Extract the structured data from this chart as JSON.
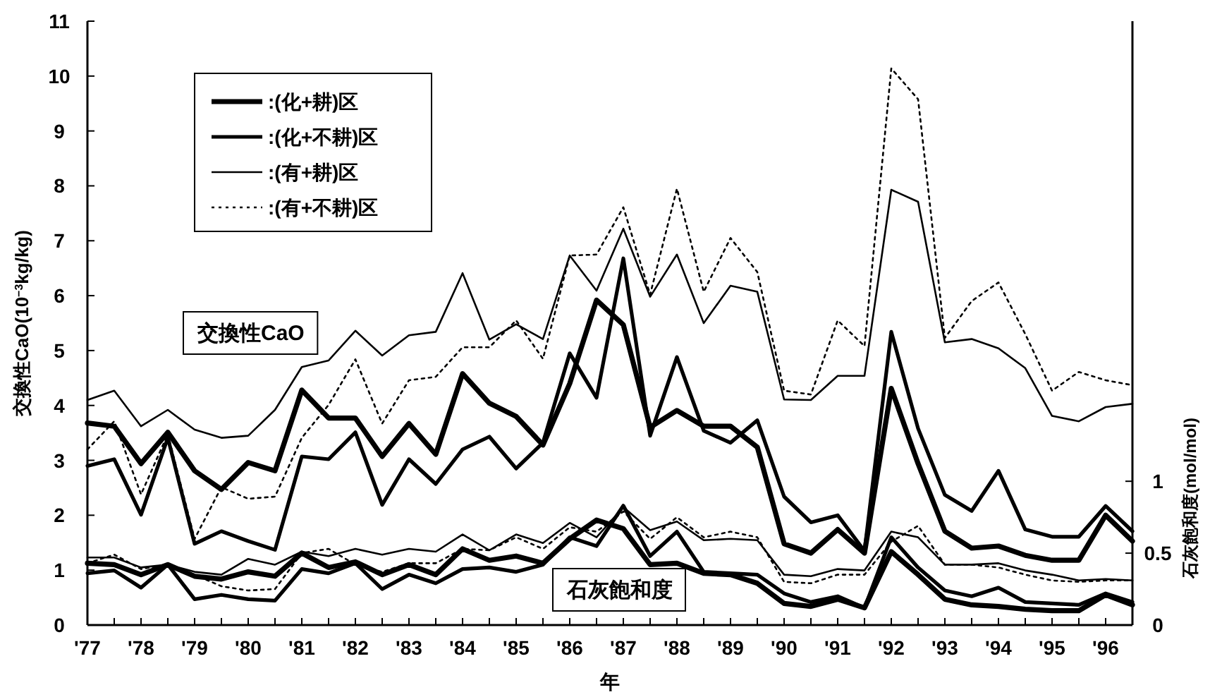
{
  "chart_data": {
    "type": "line",
    "xlabel": "年",
    "ylabel": "交換性CaO(10$^{−3}$kg/kg)",
    "y2label": "石灰飽和度(mol/mol)",
    "annotations": [
      "交換性CaO",
      "石灰飽和度"
    ],
    "x": [
      1977,
      1977.5,
      1978,
      1978.5,
      1979,
      1979.5,
      1980,
      1980.5,
      1981,
      1981.5,
      1982,
      1982.5,
      1983,
      1983.5,
      1984,
      1984.5,
      1985,
      1985.5,
      1986,
      1986.5,
      1987,
      1987.5,
      1988,
      1988.5,
      1989,
      1989.5,
      1990,
      1990.5,
      1991,
      1991.5,
      1992,
      1992.5,
      1993,
      1993.5,
      1994,
      1994.5,
      1995,
      1995.5,
      1996,
      1996.5
    ],
    "xlim": [
      1977,
      1996.5
    ],
    "xticks": [
      {
        "value": 1977,
        "label": "'77"
      },
      {
        "value": 1977.5,
        "label": null
      },
      {
        "value": 1978,
        "label": "'78"
      },
      {
        "value": 1978.5,
        "label": null
      },
      {
        "value": 1979,
        "label": "'79"
      },
      {
        "value": 1979.5,
        "label": null
      },
      {
        "value": 1980,
        "label": "'80"
      },
      {
        "value": 1980.5,
        "label": null
      },
      {
        "value": 1981,
        "label": "'81"
      },
      {
        "value": 1981.5,
        "label": null
      },
      {
        "value": 1982,
        "label": "'82"
      },
      {
        "value": 1982.5,
        "label": null
      },
      {
        "value": 1983,
        "label": "'83"
      },
      {
        "value": 1983.5,
        "label": null
      },
      {
        "value": 1984,
        "label": "'84"
      },
      {
        "value": 1984.5,
        "label": null
      },
      {
        "value": 1985,
        "label": "'85"
      },
      {
        "value": 1985.5,
        "label": null
      },
      {
        "value": 1986,
        "label": "'86"
      },
      {
        "value": 1986.5,
        "label": null
      },
      {
        "value": 1987,
        "label": "'87"
      },
      {
        "value": 1987.5,
        "label": null
      },
      {
        "value": 1988,
        "label": "'88"
      },
      {
        "value": 1988.5,
        "label": null
      },
      {
        "value": 1989,
        "label": "'89"
      },
      {
        "value": 1989.5,
        "label": null
      },
      {
        "value": 1990,
        "label": "'90"
      },
      {
        "value": 1990.5,
        "label": null
      },
      {
        "value": 1991,
        "label": "'91"
      },
      {
        "value": 1991.5,
        "label": null
      },
      {
        "value": 1992,
        "label": "'92"
      },
      {
        "value": 1992.5,
        "label": null
      },
      {
        "value": 1993,
        "label": "'93"
      },
      {
        "value": 1993.5,
        "label": null
      },
      {
        "value": 1994,
        "label": "'94"
      },
      {
        "value": 1994.5,
        "label": null
      },
      {
        "value": 1995,
        "label": "'95"
      },
      {
        "value": 1995.5,
        "label": null
      },
      {
        "value": 1996,
        "label": "'96"
      },
      {
        "value": 1996.5,
        "label": null
      }
    ],
    "ylim": [
      0,
      11
    ],
    "yticks": [
      0,
      1,
      2,
      3,
      4,
      5,
      6,
      7,
      8,
      9,
      10,
      11
    ],
    "y2lim": [
      0,
      4.2
    ],
    "y2ticks": [
      0,
      0.5,
      1
    ],
    "legend": "top left",
    "grid": false,
    "marker": "none",
    "series": [
      {
        "name": ":(化+耕)区",
        "color": "#000000",
        "line_style": "solid",
        "values": [
          3.68,
          3.62,
          2.94,
          3.51,
          2.81,
          2.47,
          2.96,
          2.81,
          4.28,
          3.77,
          3.77,
          3.07,
          3.67,
          3.11,
          4.58,
          4.04,
          3.8,
          3.28,
          4.4,
          5.92,
          5.47,
          3.6,
          3.91,
          3.62,
          3.62,
          3.24,
          1.48,
          1.31,
          1.74,
          1.31,
          4.31,
          2.94,
          1.71,
          1.4,
          1.44,
          1.27,
          1.18,
          1.18,
          2.0,
          1.53
        ]
      },
      {
        "name": ":(化+不耕)区",
        "color": "#000000",
        "line_style": "solid",
        "values": [
          2.9,
          3.02,
          2.01,
          3.41,
          1.48,
          1.71,
          1.53,
          1.37,
          3.07,
          3.02,
          3.51,
          2.19,
          3.02,
          2.57,
          3.2,
          3.43,
          2.85,
          3.32,
          4.95,
          4.14,
          6.68,
          3.45,
          4.88,
          3.54,
          3.32,
          3.73,
          2.34,
          1.87,
          2.0,
          1.35,
          5.34,
          3.58,
          2.37,
          2.08,
          2.81,
          1.74,
          1.61,
          1.61,
          2.17,
          1.71
        ]
      },
      {
        "name": ":(有+耕)区",
        "color": "#000000",
        "line_style": "solid",
        "values": [
          4.1,
          4.27,
          3.62,
          3.92,
          3.56,
          3.41,
          3.45,
          3.92,
          4.7,
          4.82,
          5.36,
          4.91,
          5.28,
          5.34,
          6.41,
          5.2,
          5.48,
          5.21,
          6.73,
          6.09,
          7.22,
          5.98,
          6.75,
          5.5,
          6.18,
          6.07,
          4.11,
          4.1,
          4.54,
          4.54,
          7.93,
          7.71,
          5.15,
          5.21,
          5.04,
          4.68,
          3.81,
          3.71,
          3.97,
          4.03
        ]
      },
      {
        "name": ":(有+不耕)区",
        "color": "#000000",
        "line_style": "dotted",
        "values": [
          3.2,
          3.71,
          2.38,
          3.48,
          1.57,
          2.51,
          2.3,
          2.34,
          3.41,
          4.01,
          4.84,
          3.67,
          4.46,
          4.52,
          5.06,
          5.06,
          5.55,
          4.85,
          6.73,
          6.75,
          7.61,
          6.02,
          7.95,
          6.07,
          7.05,
          6.43,
          4.27,
          4.2,
          5.55,
          5.08,
          10.14,
          9.58,
          5.23,
          5.9,
          6.24,
          5.3,
          4.27,
          4.61,
          4.46,
          4.37
        ]
      },
      {
        "axis": "y2",
        "color": "#000000",
        "line_style": "solid",
        "values": [
          0.43,
          0.42,
          0.35,
          0.42,
          0.34,
          0.32,
          0.37,
          0.34,
          0.5,
          0.4,
          0.44,
          0.35,
          0.42,
          0.35,
          0.53,
          0.45,
          0.48,
          0.43,
          0.6,
          0.73,
          0.67,
          0.42,
          0.43,
          0.36,
          0.35,
          0.29,
          0.15,
          0.13,
          0.18,
          0.12,
          0.51,
          0.35,
          0.18,
          0.14,
          0.13,
          0.11,
          0.1,
          0.1,
          0.21,
          0.14
        ]
      },
      {
        "axis": "y2",
        "color": "#000000",
        "line_style": "solid",
        "values": [
          0.36,
          0.38,
          0.26,
          0.42,
          0.18,
          0.21,
          0.18,
          0.17,
          0.39,
          0.36,
          0.43,
          0.25,
          0.35,
          0.29,
          0.39,
          0.4,
          0.37,
          0.42,
          0.61,
          0.55,
          0.83,
          0.48,
          0.65,
          0.37,
          0.36,
          0.35,
          0.22,
          0.16,
          0.2,
          0.12,
          0.61,
          0.4,
          0.24,
          0.2,
          0.26,
          0.16,
          0.15,
          0.14,
          0.22,
          0.16
        ]
      },
      {
        "axis": "y2",
        "color": "#000000",
        "line_style": "solid",
        "values": [
          0.47,
          0.47,
          0.4,
          0.42,
          0.37,
          0.35,
          0.46,
          0.42,
          0.51,
          0.48,
          0.53,
          0.49,
          0.53,
          0.51,
          0.63,
          0.52,
          0.63,
          0.57,
          0.71,
          0.61,
          0.82,
          0.66,
          0.72,
          0.59,
          0.6,
          0.59,
          0.35,
          0.34,
          0.39,
          0.38,
          0.65,
          0.61,
          0.42,
          0.42,
          0.43,
          0.38,
          0.35,
          0.31,
          0.32,
          0.31
        ]
      },
      {
        "axis": "y2",
        "color": "#000000",
        "line_style": "dotted",
        "values": [
          0.43,
          0.49,
          0.39,
          0.42,
          0.35,
          0.27,
          0.24,
          0.25,
          0.5,
          0.53,
          0.42,
          0.37,
          0.43,
          0.43,
          0.53,
          0.52,
          0.61,
          0.53,
          0.68,
          0.65,
          0.79,
          0.6,
          0.75,
          0.61,
          0.65,
          0.61,
          0.3,
          0.29,
          0.35,
          0.35,
          0.58,
          0.69,
          0.42,
          0.42,
          0.4,
          0.35,
          0.31,
          0.3,
          0.31,
          0.31
        ]
      }
    ]
  }
}
